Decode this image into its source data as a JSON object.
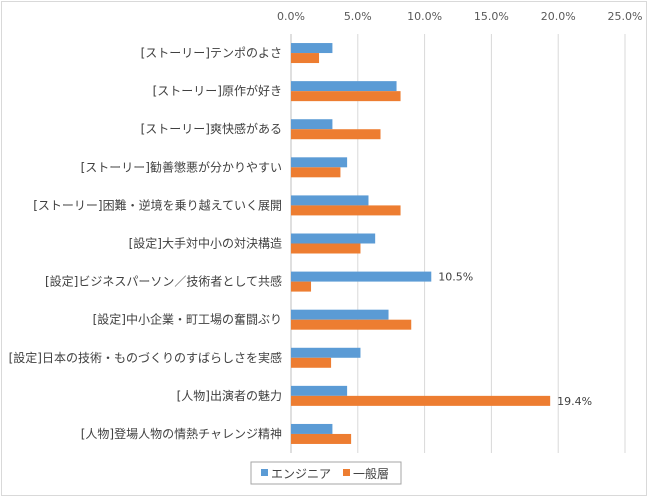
{
  "chart_data": {
    "type": "bar",
    "orientation": "horizontal",
    "categories": [
      "[ストーリー]テンポのよさ",
      "[ストーリー]原作が好き",
      "[ストーリー]爽快感がある",
      "[ストーリー]勧善懲悪が分かりやすい",
      "[ストーリー]困難・逆境を乗り越えていく展開",
      "[設定]大手対中小の対決構造",
      "[設定]ビジネスパーソン／技術者として共感",
      "[設定]中小企業・町工場の奮闘ぶり",
      "[設定]日本の技術・ものづくりのすばらしさを実感",
      "[人物]出演者の魅力",
      "[人物]登場人物の情熱チャレンジ精神"
    ],
    "series": [
      {
        "name": "エンジニア",
        "color": "#5b9bd5",
        "values": [
          3.1,
          7.9,
          3.1,
          4.2,
          5.8,
          6.3,
          10.5,
          7.3,
          5.2,
          4.2,
          3.1
        ]
      },
      {
        "name": "一般層",
        "color": "#ed7d31",
        "values": [
          2.1,
          8.2,
          6.7,
          3.7,
          8.2,
          5.2,
          1.5,
          9.0,
          3.0,
          19.4,
          4.5
        ]
      }
    ],
    "data_labels": [
      {
        "series": 0,
        "index": 6,
        "text": "10.5%"
      },
      {
        "series": 1,
        "index": 9,
        "text": "19.4%"
      }
    ],
    "xlim": [
      0,
      25
    ],
    "x_ticks": [
      "0.0%",
      "5.0%",
      "10.0%",
      "15.0%",
      "20.0%",
      "25.0%"
    ],
    "x_tick_values": [
      0,
      5,
      10,
      15,
      20,
      25
    ],
    "x_axis_position": "top",
    "grid": true,
    "legend_position": "bottom",
    "title": "",
    "xlabel": "",
    "ylabel": ""
  }
}
